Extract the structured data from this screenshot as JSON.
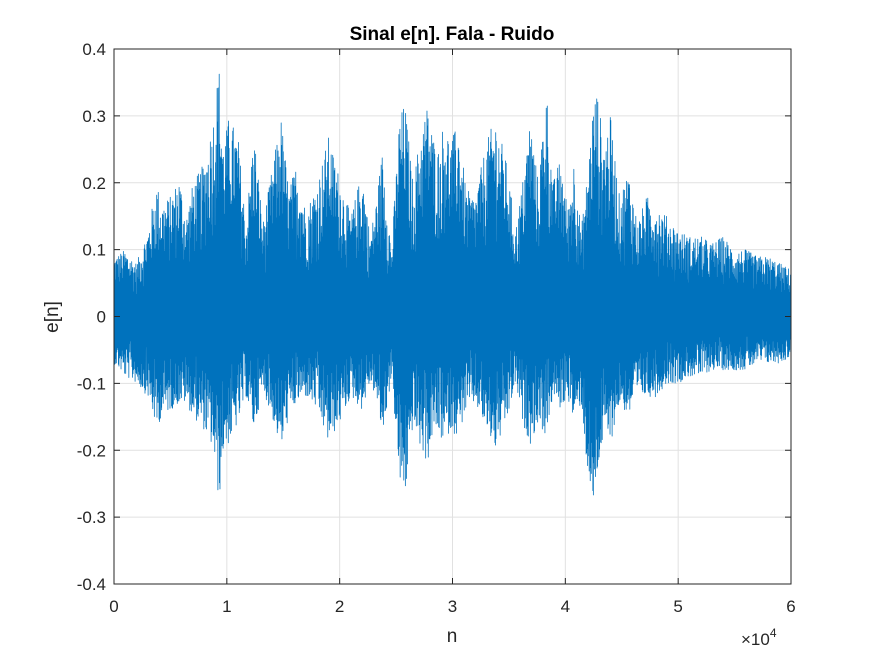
{
  "chart_data": {
    "type": "line",
    "title": "Sinal e[n]. Fala - Ruido",
    "xlabel": "n",
    "ylabel": "e[n]",
    "xlim": [
      0,
      60000
    ],
    "ylim": [
      -0.4,
      0.4
    ],
    "x_exponent_label": "×10",
    "x_exponent_power": "4",
    "x_ticks": [
      0,
      1,
      2,
      3,
      4,
      5,
      6
    ],
    "x_tick_labels": [
      "0",
      "1",
      "2",
      "3",
      "4",
      "5",
      "6"
    ],
    "y_ticks": [
      -0.4,
      -0.3,
      -0.2,
      -0.1,
      0,
      0.1,
      0.2,
      0.3,
      0.4
    ],
    "y_tick_labels": [
      "-0.4",
      "-0.3",
      "-0.2",
      "-0.1",
      "0",
      "0.1",
      "0.2",
      "0.3",
      "0.4"
    ],
    "grid": true,
    "line_color": "#0072BD",
    "envelope": {
      "n": [
        0,
        1000,
        2000,
        3000,
        3800,
        4200,
        5000,
        5800,
        6400,
        7000,
        8000,
        8800,
        9300,
        9700,
        10200,
        11000,
        11700,
        12400,
        13200,
        14000,
        14800,
        15500,
        16200,
        17000,
        18000,
        19000,
        20000,
        21000,
        22000,
        22700,
        23200,
        23800,
        24600,
        25300,
        25800,
        26500,
        27200,
        27800,
        28300,
        28800,
        29300,
        29800,
        30500,
        31200,
        32000,
        33000,
        33800,
        34800,
        35600,
        36200,
        36900,
        37600,
        38300,
        38900,
        39600,
        40200,
        40800,
        41400,
        42000,
        42400,
        42800,
        43400,
        44000,
        44800,
        45600,
        46400,
        47200,
        48000,
        49000,
        50000,
        51000,
        52000,
        53000,
        54000,
        55000,
        56000,
        57000,
        58000,
        59000,
        60000
      ],
      "upper": [
        0.09,
        0.1,
        0.08,
        0.13,
        0.2,
        0.17,
        0.18,
        0.21,
        0.15,
        0.2,
        0.23,
        0.3,
        0.38,
        0.26,
        0.3,
        0.27,
        0.14,
        0.28,
        0.14,
        0.22,
        0.3,
        0.19,
        0.23,
        0.16,
        0.2,
        0.27,
        0.21,
        0.15,
        0.22,
        0.12,
        0.17,
        0.25,
        0.1,
        0.3,
        0.32,
        0.2,
        0.28,
        0.32,
        0.27,
        0.25,
        0.3,
        0.26,
        0.29,
        0.19,
        0.18,
        0.26,
        0.3,
        0.23,
        0.13,
        0.2,
        0.3,
        0.2,
        0.35,
        0.2,
        0.24,
        0.16,
        0.24,
        0.13,
        0.22,
        0.31,
        0.34,
        0.26,
        0.3,
        0.18,
        0.22,
        0.14,
        0.18,
        0.17,
        0.15,
        0.13,
        0.12,
        0.12,
        0.11,
        0.12,
        0.1,
        0.1,
        0.09,
        0.09,
        0.08,
        0.07
      ],
      "lower": [
        -0.07,
        -0.09,
        -0.1,
        -0.12,
        -0.17,
        -0.15,
        -0.14,
        -0.13,
        -0.13,
        -0.15,
        -0.17,
        -0.2,
        -0.28,
        -0.2,
        -0.19,
        -0.16,
        -0.12,
        -0.17,
        -0.11,
        -0.15,
        -0.2,
        -0.15,
        -0.13,
        -0.12,
        -0.14,
        -0.19,
        -0.16,
        -0.12,
        -0.14,
        -0.1,
        -0.12,
        -0.18,
        -0.09,
        -0.25,
        -0.27,
        -0.16,
        -0.2,
        -0.22,
        -0.17,
        -0.18,
        -0.19,
        -0.17,
        -0.18,
        -0.14,
        -0.13,
        -0.17,
        -0.2,
        -0.16,
        -0.1,
        -0.16,
        -0.19,
        -0.16,
        -0.18,
        -0.12,
        -0.14,
        -0.12,
        -0.16,
        -0.13,
        -0.24,
        -0.3,
        -0.24,
        -0.18,
        -0.19,
        -0.13,
        -0.15,
        -0.12,
        -0.12,
        -0.12,
        -0.1,
        -0.1,
        -0.09,
        -0.09,
        -0.08,
        -0.08,
        -0.08,
        -0.08,
        -0.07,
        -0.07,
        -0.07,
        -0.06
      ]
    }
  }
}
